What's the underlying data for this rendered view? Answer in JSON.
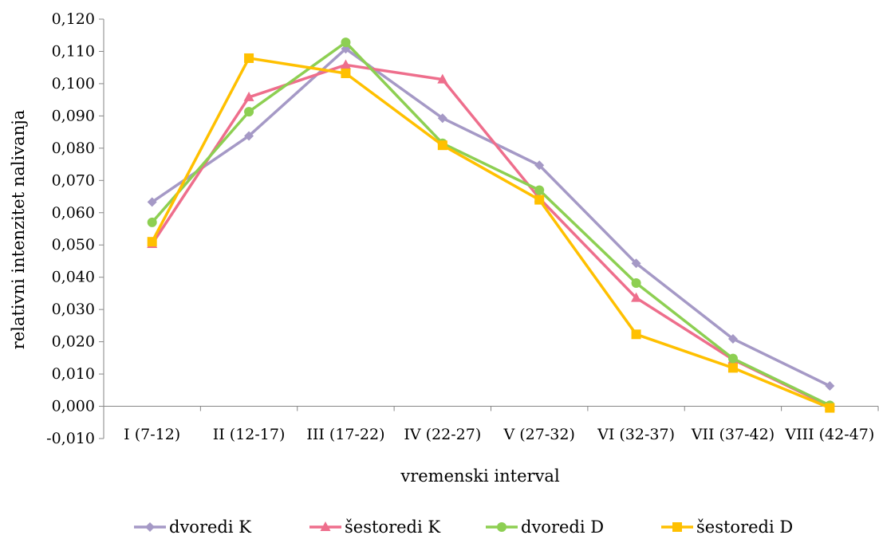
{
  "chart_data": {
    "type": "line",
    "xlabel": "vremenski interval",
    "ylabel": "relativni intenzitet nalivanja",
    "categories": [
      "I (7-12)",
      "II (12-17)",
      "III (17-22)",
      "IV (22-27)",
      "V (27-32)",
      "VI (32-37)",
      "VII (37-42)",
      "VIII (42-47)"
    ],
    "ylim": [
      -0.01,
      0.12
    ],
    "yticks": [
      -0.01,
      0,
      0.01,
      0.02,
      0.03,
      0.04,
      0.05,
      0.06,
      0.07,
      0.08,
      0.09,
      0.1,
      0.11,
      0.12
    ],
    "ytick_labels": [
      "-0,010",
      "0,000",
      "0,010",
      "0,020",
      "0,030",
      "0,040",
      "0,050",
      "0,060",
      "0,070",
      "0,080",
      "0,090",
      "0,100",
      "0,110",
      "0,120"
    ],
    "grid": false,
    "legend_position": "bottom",
    "series": [
      {
        "name": "dvoredi K",
        "color": "#A599C6",
        "marker": "diamond",
        "values": [
          0.0633,
          0.0838,
          0.1108,
          0.0893,
          0.0747,
          0.0443,
          0.0209,
          0.0063
        ]
      },
      {
        "name": "šestoredi K",
        "color": "#EE6E8C",
        "marker": "triangle",
        "values": [
          0.0503,
          0.0958,
          0.1058,
          0.1013,
          0.0645,
          0.0336,
          0.0145,
          0.0
        ]
      },
      {
        "name": "dvoredi D",
        "color": "#8DCF52",
        "marker": "circle",
        "values": [
          0.057,
          0.0913,
          0.1128,
          0.0815,
          0.067,
          0.0382,
          0.0148,
          0.0003
        ]
      },
      {
        "name": "šestoredi D",
        "color": "#FFC000",
        "marker": "square",
        "values": [
          0.051,
          0.1079,
          0.1032,
          0.0809,
          0.064,
          0.0223,
          0.0119,
          -0.0005
        ]
      }
    ]
  }
}
